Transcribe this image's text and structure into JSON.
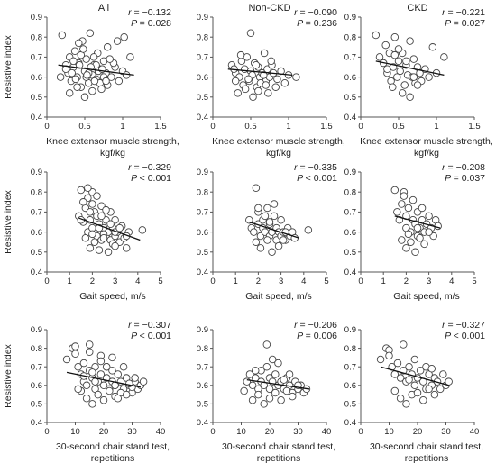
{
  "figure": {
    "column_titles": [
      "All",
      "Non-CKD",
      "CKD"
    ]
  },
  "chart_data": [
    {
      "type": "scatter",
      "row": 0,
      "col": 0,
      "title": "All",
      "xlabel": [
        "Knee extensor muscle strength,",
        "kgf/kg"
      ],
      "ylabel": "Resistive index",
      "xlim": [
        0,
        1.5
      ],
      "ylim": [
        0.4,
        0.9
      ],
      "xticks": [
        "0",
        "0.5",
        "1",
        "1.5"
      ],
      "yticks": [
        "0.4",
        "0.5",
        "0.6",
        "0.7",
        "0.8",
        "0.9"
      ],
      "stats": {
        "r": "= −0.132",
        "p": "= 0.028"
      },
      "trendline": {
        "x": [
          0.15,
          1.15
        ],
        "y": [
          0.66,
          0.61
        ]
      },
      "points": {
        "x": [
          0.2,
          0.25,
          0.28,
          0.3,
          0.32,
          0.35,
          0.37,
          0.4,
          0.42,
          0.45,
          0.47,
          0.5,
          0.52,
          0.55,
          0.57,
          0.6,
          0.62,
          0.65,
          0.67,
          0.7,
          0.72,
          0.75,
          0.78,
          0.8,
          0.85,
          0.9,
          0.95,
          1.0,
          1.05,
          1.1,
          0.3,
          0.4,
          0.5,
          0.6,
          0.7,
          0.8,
          0.35,
          0.45,
          0.55,
          0.65,
          0.75,
          0.25,
          0.38,
          0.48,
          0.58,
          0.68,
          0.78,
          0.88,
          0.42,
          0.52,
          0.62,
          0.72,
          0.33,
          0.43,
          0.53,
          0.63,
          0.73,
          0.83,
          0.93,
          0.18,
          1.02
        ],
        "y": [
          0.81,
          0.66,
          0.62,
          0.7,
          0.58,
          0.65,
          0.73,
          0.6,
          0.67,
          0.55,
          0.78,
          0.63,
          0.69,
          0.57,
          0.82,
          0.61,
          0.66,
          0.59,
          0.72,
          0.64,
          0.56,
          0.68,
          0.62,
          0.75,
          0.6,
          0.65,
          0.58,
          0.63,
          0.61,
          0.7,
          0.52,
          0.55,
          0.5,
          0.53,
          0.57,
          0.56,
          0.68,
          0.71,
          0.62,
          0.66,
          0.6,
          0.64,
          0.59,
          0.74,
          0.65,
          0.63,
          0.58,
          0.67,
          0.77,
          0.6,
          0.7,
          0.54,
          0.62,
          0.66,
          0.61,
          0.58,
          0.64,
          0.69,
          0.78,
          0.6,
          0.8
        ]
      }
    },
    {
      "type": "scatter",
      "row": 0,
      "col": 1,
      "title": "Non-CKD",
      "xlabel": [
        "Knee extensor muscle strength,",
        "kgf/kg"
      ],
      "ylabel": "",
      "xlim": [
        0,
        1.5
      ],
      "ylim": [
        0.4,
        0.9
      ],
      "xticks": [
        "0",
        "0.5",
        "1",
        "1.5"
      ],
      "yticks": [
        "0.4",
        "0.5",
        "0.6",
        "0.7",
        "0.8",
        "0.9"
      ],
      "stats": {
        "r": "= −0.090",
        "p": "= 0.236"
      },
      "trendline": {
        "x": [
          0.2,
          1.05
        ],
        "y": [
          0.64,
          0.61
        ]
      },
      "points": {
        "x": [
          0.25,
          0.3,
          0.35,
          0.38,
          0.4,
          0.42,
          0.45,
          0.48,
          0.5,
          0.52,
          0.55,
          0.58,
          0.6,
          0.62,
          0.65,
          0.68,
          0.7,
          0.72,
          0.75,
          0.78,
          0.8,
          0.85,
          0.9,
          0.95,
          1.0,
          1.1,
          0.33,
          0.43,
          0.53,
          0.63,
          0.73,
          0.83,
          0.37,
          0.47,
          0.57,
          0.67,
          0.77,
          0.3,
          0.5,
          0.7,
          0.28,
          0.6
        ],
        "y": [
          0.66,
          0.62,
          0.6,
          0.68,
          0.56,
          0.64,
          0.7,
          0.58,
          0.63,
          0.61,
          0.67,
          0.55,
          0.65,
          0.6,
          0.62,
          0.72,
          0.58,
          0.64,
          0.6,
          0.66,
          0.62,
          0.59,
          0.63,
          0.57,
          0.61,
          0.6,
          0.52,
          0.54,
          0.5,
          0.57,
          0.52,
          0.55,
          0.71,
          0.59,
          0.66,
          0.61,
          0.68,
          0.58,
          0.82,
          0.56,
          0.64,
          0.53
        ]
      }
    },
    {
      "type": "scatter",
      "row": 0,
      "col": 2,
      "title": "CKD",
      "xlabel": [
        "Knee extensor muscle strength,",
        "kgf/kg"
      ],
      "ylabel": "",
      "xlim": [
        0,
        1.5
      ],
      "ylim": [
        0.4,
        0.9
      ],
      "xticks": [
        "0",
        "0.5",
        "1",
        "1.5"
      ],
      "yticks": [
        "0.4",
        "0.5",
        "0.6",
        "0.7",
        "0.8",
        "0.9"
      ],
      "stats": {
        "r": "= −0.221",
        "p": "= 0.027"
      },
      "trendline": {
        "x": [
          0.2,
          1.1
        ],
        "y": [
          0.68,
          0.61
        ]
      },
      "points": {
        "x": [
          0.2,
          0.25,
          0.3,
          0.33,
          0.35,
          0.38,
          0.4,
          0.43,
          0.45,
          0.48,
          0.5,
          0.52,
          0.55,
          0.58,
          0.6,
          0.62,
          0.65,
          0.68,
          0.7,
          0.72,
          0.75,
          0.78,
          0.8,
          0.85,
          0.9,
          0.95,
          1.0,
          1.1,
          0.42,
          0.55,
          0.65,
          0.75,
          0.5,
          0.6,
          0.7,
          0.35,
          0.45
        ],
        "y": [
          0.81,
          0.7,
          0.67,
          0.76,
          0.62,
          0.72,
          0.58,
          0.65,
          0.8,
          0.6,
          0.68,
          0.63,
          0.72,
          0.56,
          0.66,
          0.61,
          0.78,
          0.6,
          0.69,
          0.57,
          0.65,
          0.62,
          0.58,
          0.64,
          0.6,
          0.75,
          0.62,
          0.7,
          0.55,
          0.52,
          0.5,
          0.56,
          0.74,
          0.68,
          0.6,
          0.64,
          0.71
        ]
      }
    },
    {
      "type": "scatter",
      "row": 1,
      "col": 0,
      "title": "",
      "xlabel": [
        "Gait speed, m/s"
      ],
      "ylabel": "Resistive index",
      "xlim": [
        0,
        5
      ],
      "ylim": [
        0.4,
        0.9
      ],
      "xticks": [
        "0",
        "1",
        "2",
        "3",
        "4",
        "5"
      ],
      "yticks": [
        "0.4",
        "0.5",
        "0.6",
        "0.7",
        "0.8",
        "0.9"
      ],
      "stats": {
        "r": "= −0.329",
        "p": "< 0.001"
      },
      "trendline": {
        "x": [
          1.4,
          4.1
        ],
        "y": [
          0.67,
          0.56
        ]
      },
      "points": {
        "x": [
          1.4,
          1.5,
          1.6,
          1.7,
          1.8,
          1.8,
          1.9,
          2.0,
          2.0,
          2.1,
          2.2,
          2.2,
          2.3,
          2.4,
          2.4,
          2.5,
          2.6,
          2.6,
          2.7,
          2.8,
          2.8,
          2.9,
          3.0,
          3.0,
          3.1,
          3.2,
          3.3,
          3.4,
          3.5,
          3.6,
          4.2,
          1.6,
          1.8,
          2.0,
          2.2,
          2.4,
          2.6,
          2.8,
          3.0,
          1.7,
          1.9,
          2.1,
          2.3,
          2.5,
          2.7,
          2.9,
          3.2,
          1.5,
          2.0,
          2.5,
          3.0,
          3.5,
          1.9,
          2.3
        ],
        "y": [
          0.68,
          0.81,
          0.65,
          0.72,
          0.6,
          0.77,
          0.66,
          0.62,
          0.8,
          0.7,
          0.58,
          0.68,
          0.64,
          0.73,
          0.56,
          0.62,
          0.66,
          0.58,
          0.6,
          0.7,
          0.56,
          0.62,
          0.58,
          0.66,
          0.6,
          0.55,
          0.63,
          0.57,
          0.52,
          0.6,
          0.61,
          0.75,
          0.82,
          0.74,
          0.78,
          0.68,
          0.71,
          0.64,
          0.6,
          0.57,
          0.52,
          0.55,
          0.51,
          0.59,
          0.5,
          0.54,
          0.62,
          0.66,
          0.59,
          0.57,
          0.53,
          0.58,
          0.7,
          0.62
        ]
      }
    },
    {
      "type": "scatter",
      "row": 1,
      "col": 1,
      "title": "",
      "xlabel": [
        "Gait speed, m/s"
      ],
      "ylabel": "",
      "xlim": [
        0,
        5
      ],
      "ylim": [
        0.4,
        0.9
      ],
      "xticks": [
        "0",
        "1",
        "2",
        "3",
        "4",
        "5"
      ],
      "yticks": [
        "0.4",
        "0.5",
        "0.6",
        "0.7",
        "0.8",
        "0.9"
      ],
      "stats": {
        "r": "= −0.335",
        "p": "< 0.001"
      },
      "trendline": {
        "x": [
          1.6,
          3.8
        ],
        "y": [
          0.65,
          0.57
        ]
      },
      "points": {
        "x": [
          1.6,
          1.7,
          1.8,
          1.9,
          2.0,
          2.0,
          2.1,
          2.2,
          2.2,
          2.3,
          2.4,
          2.5,
          2.5,
          2.6,
          2.7,
          2.8,
          2.8,
          2.9,
          3.0,
          3.0,
          3.1,
          3.2,
          3.3,
          3.4,
          3.5,
          3.6,
          4.2,
          1.9,
          2.1,
          2.4,
          2.6,
          2.9,
          3.1,
          2.3,
          2.7,
          2.0,
          2.5,
          3.2
        ],
        "y": [
          0.66,
          0.62,
          0.6,
          0.82,
          0.64,
          0.7,
          0.58,
          0.66,
          0.62,
          0.6,
          0.72,
          0.58,
          0.64,
          0.6,
          0.68,
          0.56,
          0.62,
          0.6,
          0.58,
          0.66,
          0.6,
          0.56,
          0.62,
          0.58,
          0.6,
          0.57,
          0.61,
          0.55,
          0.52,
          0.56,
          0.5,
          0.53,
          0.56,
          0.68,
          0.74,
          0.72,
          0.65,
          0.6
        ]
      }
    },
    {
      "type": "scatter",
      "row": 1,
      "col": 2,
      "title": "",
      "xlabel": [
        "Gait speed, m/s"
      ],
      "ylabel": "",
      "xlim": [
        0,
        5
      ],
      "ylim": [
        0.4,
        0.9
      ],
      "xticks": [
        "0",
        "1",
        "2",
        "3",
        "4",
        "5"
      ],
      "yticks": [
        "0.4",
        "0.5",
        "0.6",
        "0.7",
        "0.8",
        "0.9"
      ],
      "stats": {
        "r": "= −0.208",
        "p": "= 0.037"
      },
      "trendline": {
        "x": [
          1.5,
          3.5
        ],
        "y": [
          0.68,
          0.62
        ]
      },
      "points": {
        "x": [
          1.5,
          1.6,
          1.7,
          1.8,
          1.9,
          2.0,
          2.0,
          2.1,
          2.2,
          2.3,
          2.4,
          2.5,
          2.5,
          2.6,
          2.7,
          2.8,
          2.9,
          3.0,
          3.1,
          3.2,
          3.3,
          3.4,
          1.8,
          2.0,
          2.2,
          2.4,
          2.6,
          2.8,
          3.0,
          1.9,
          2.3,
          2.7,
          2.1,
          2.5
        ],
        "y": [
          0.81,
          0.7,
          0.66,
          0.74,
          0.8,
          0.62,
          0.68,
          0.72,
          0.6,
          0.66,
          0.64,
          0.7,
          0.58,
          0.62,
          0.66,
          0.6,
          0.64,
          0.68,
          0.62,
          0.58,
          0.66,
          0.63,
          0.56,
          0.52,
          0.55,
          0.5,
          0.57,
          0.54,
          0.6,
          0.78,
          0.76,
          0.72,
          0.59,
          0.62
        ]
      }
    },
    {
      "type": "scatter",
      "row": 2,
      "col": 0,
      "title": "",
      "xlabel": [
        "30-second chair stand test,",
        "repetitions"
      ],
      "ylabel": "Resistive index",
      "xlim": [
        0,
        40
      ],
      "ylim": [
        0.4,
        0.9
      ],
      "xticks": [
        "0",
        "10",
        "20",
        "30",
        "40"
      ],
      "yticks": [
        "0.4",
        "0.5",
        "0.6",
        "0.7",
        "0.8",
        "0.9"
      ],
      "stats": {
        "r": "= −0.307",
        "p": "< 0.001"
      },
      "trendline": {
        "x": [
          7,
          33
        ],
        "y": [
          0.67,
          0.59
        ]
      },
      "points": {
        "x": [
          7,
          9,
          10,
          11,
          12,
          13,
          13,
          14,
          15,
          15,
          16,
          17,
          17,
          18,
          19,
          19,
          20,
          21,
          21,
          22,
          23,
          23,
          24,
          25,
          26,
          27,
          28,
          29,
          30,
          31,
          32,
          33,
          34,
          12,
          14,
          16,
          18,
          20,
          22,
          24,
          26,
          28,
          30,
          11,
          15,
          19,
          23,
          27,
          31,
          10,
          17,
          25,
          13,
          21,
          29,
          16,
          24
        ],
        "y": [
          0.74,
          0.8,
          0.77,
          0.7,
          0.66,
          0.62,
          0.72,
          0.6,
          0.68,
          0.78,
          0.64,
          0.58,
          0.7,
          0.62,
          0.66,
          0.76,
          0.6,
          0.64,
          0.7,
          0.58,
          0.62,
          0.68,
          0.6,
          0.66,
          0.62,
          0.58,
          0.64,
          0.6,
          0.56,
          0.62,
          0.58,
          0.6,
          0.62,
          0.57,
          0.53,
          0.5,
          0.55,
          0.52,
          0.57,
          0.54,
          0.56,
          0.55,
          0.59,
          0.58,
          0.82,
          0.73,
          0.75,
          0.7,
          0.64,
          0.81,
          0.62,
          0.53,
          0.65,
          0.7,
          0.61,
          0.67,
          0.6
        ]
      }
    },
    {
      "type": "scatter",
      "row": 2,
      "col": 1,
      "title": "",
      "xlabel": [
        "30-second chair stand test,",
        "repetitions"
      ],
      "ylabel": "",
      "xlim": [
        0,
        40
      ],
      "ylim": [
        0.4,
        0.9
      ],
      "xticks": [
        "0",
        "10",
        "20",
        "30",
        "40"
      ],
      "yticks": [
        "0.4",
        "0.5",
        "0.6",
        "0.7",
        "0.8",
        "0.9"
      ],
      "stats": {
        "r": "= −0.206",
        "p": "= 0.006"
      },
      "trendline": {
        "x": [
          12,
          34
        ],
        "y": [
          0.63,
          0.58
        ]
      },
      "points": {
        "x": [
          11,
          12,
          13,
          14,
          15,
          16,
          17,
          17,
          18,
          19,
          20,
          20,
          21,
          22,
          23,
          24,
          25,
          26,
          27,
          28,
          29,
          30,
          31,
          32,
          33,
          14,
          16,
          18,
          20,
          22,
          24,
          26,
          28,
          30,
          19,
          23,
          27,
          15,
          21,
          25
        ],
        "y": [
          0.57,
          0.62,
          0.66,
          0.6,
          0.64,
          0.58,
          0.62,
          0.68,
          0.6,
          0.82,
          0.64,
          0.58,
          0.62,
          0.66,
          0.6,
          0.62,
          0.58,
          0.64,
          0.6,
          0.56,
          0.62,
          0.58,
          0.6,
          0.56,
          0.58,
          0.52,
          0.55,
          0.5,
          0.53,
          0.56,
          0.52,
          0.57,
          0.54,
          0.6,
          0.7,
          0.72,
          0.66,
          0.68,
          0.74,
          0.63
        ]
      }
    },
    {
      "type": "scatter",
      "row": 2,
      "col": 2,
      "title": "",
      "xlabel": [
        "30-second chair stand test,",
        "repetitions"
      ],
      "ylabel": "",
      "xlim": [
        0,
        40
      ],
      "ylim": [
        0.4,
        0.9
      ],
      "xticks": [
        "0",
        "10",
        "20",
        "30",
        "40"
      ],
      "yticks": [
        "0.4",
        "0.5",
        "0.6",
        "0.7",
        "0.8",
        "0.9"
      ],
      "stats": {
        "r": "= −0.327",
        "p": "< 0.001"
      },
      "trendline": {
        "x": [
          7,
          31
        ],
        "y": [
          0.7,
          0.6
        ]
      },
      "points": {
        "x": [
          7,
          9,
          10,
          11,
          12,
          13,
          14,
          15,
          16,
          17,
          18,
          19,
          20,
          21,
          22,
          23,
          24,
          25,
          26,
          27,
          28,
          29,
          30,
          31,
          12,
          14,
          16,
          18,
          20,
          22,
          24,
          26,
          15,
          19,
          23,
          10,
          17,
          25
        ],
        "y": [
          0.74,
          0.8,
          0.79,
          0.7,
          0.66,
          0.72,
          0.64,
          0.68,
          0.62,
          0.7,
          0.66,
          0.6,
          0.64,
          0.68,
          0.62,
          0.58,
          0.66,
          0.6,
          0.64,
          0.62,
          0.58,
          0.66,
          0.6,
          0.62,
          0.57,
          0.53,
          0.5,
          0.55,
          0.56,
          0.52,
          0.58,
          0.55,
          0.82,
          0.74,
          0.7,
          0.76,
          0.63,
          0.69
        ]
      }
    }
  ]
}
